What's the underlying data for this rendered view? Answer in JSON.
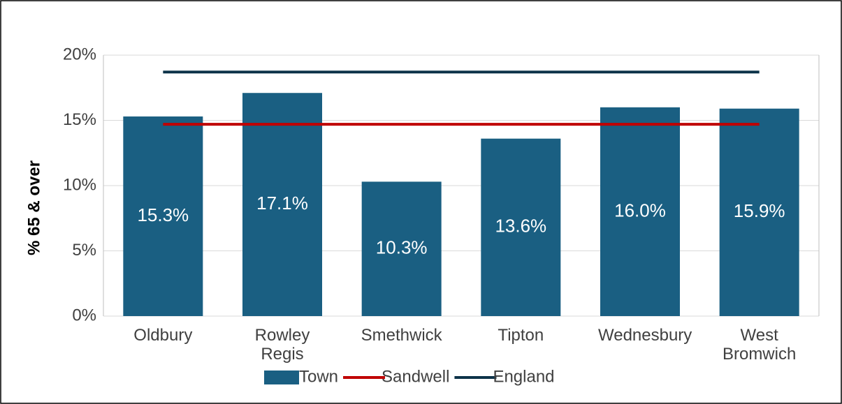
{
  "chart_data": {
    "type": "bar",
    "y_axis_label": "% 65 & over",
    "categories": [
      "Oldbury",
      "Rowley Regis",
      "Smethwick",
      "Tipton",
      "Wednesbury",
      "West Bromwich"
    ],
    "series": [
      {
        "name": "Town",
        "type": "bar",
        "color": "#1a5f82",
        "values": [
          15.3,
          17.1,
          10.3,
          13.6,
          16.0,
          15.9
        ],
        "value_labels": [
          "15.3%",
          "17.1%",
          "10.3%",
          "13.6%",
          "16.0%",
          "15.9%"
        ]
      },
      {
        "name": "Sandwell",
        "type": "line",
        "color": "#c00000",
        "values": [
          14.7,
          14.7,
          14.7,
          14.7,
          14.7,
          14.7
        ]
      },
      {
        "name": "England",
        "type": "line",
        "color": "#0d3349",
        "values": [
          18.7,
          18.7,
          18.7,
          18.7,
          18.7,
          18.7
        ]
      }
    ],
    "ylim": [
      0,
      20
    ],
    "yticks": [
      {
        "value": 0,
        "label": "0%"
      },
      {
        "value": 5,
        "label": "5%"
      },
      {
        "value": 10,
        "label": "10%"
      },
      {
        "value": 15,
        "label": "15%"
      },
      {
        "value": 20,
        "label": "20%"
      }
    ],
    "grid": true,
    "legend": "bottom"
  }
}
